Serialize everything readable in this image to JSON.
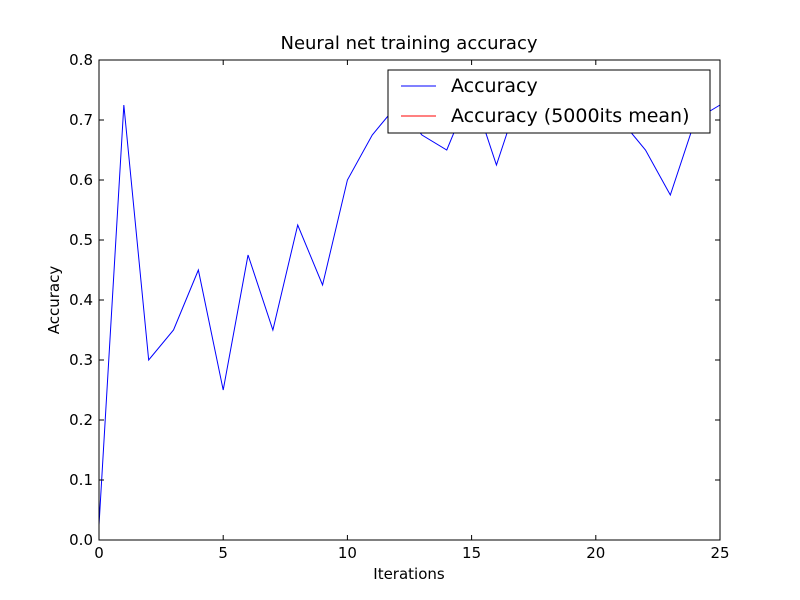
{
  "chart_data": {
    "type": "line",
    "title": "Neural net training accuracy",
    "xlabel": "Iterations",
    "ylabel": "Accuracy",
    "xlim": [
      0,
      25
    ],
    "ylim": [
      0,
      0.8
    ],
    "x_ticks": [
      "0",
      "5",
      "10",
      "15",
      "20",
      "25"
    ],
    "y_ticks": [
      "0.0",
      "0.1",
      "0.2",
      "0.3",
      "0.4",
      "0.5",
      "0.6",
      "0.7",
      "0.8"
    ],
    "grid": false,
    "legend_position": "top-right",
    "series": [
      {
        "name": "Accuracy",
        "color": "#0000ff",
        "x": [
          0,
          1,
          2,
          3,
          4,
          5,
          6,
          7,
          8,
          9,
          10,
          11,
          12,
          13,
          14,
          15,
          16,
          17,
          18,
          19,
          20,
          21,
          22,
          23,
          24,
          25
        ],
        "values": [
          0.025,
          0.725,
          0.3,
          0.35,
          0.45,
          0.25,
          0.475,
          0.35,
          0.525,
          0.425,
          0.6,
          0.675,
          0.725,
          0.675,
          0.65,
          0.75,
          0.625,
          0.75,
          0.725,
          0.75,
          0.725,
          0.7,
          0.65,
          0.575,
          0.7,
          0.725
        ]
      },
      {
        "name": "Accuracy (5000its mean)",
        "color": "#ff0000",
        "x": [],
        "values": []
      }
    ]
  }
}
